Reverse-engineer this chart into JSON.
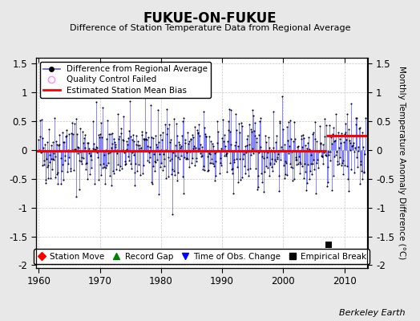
{
  "title": "FUKUE-ON-FUKUE",
  "subtitle": "Difference of Station Temperature Data from Regional Average",
  "ylabel": "Monthly Temperature Anomaly Difference (°C)",
  "xlim": [
    1959.5,
    2013.8
  ],
  "ylim": [
    -2.05,
    1.6
  ],
  "yticks": [
    -2,
    -1.5,
    -1,
    -0.5,
    0,
    0.5,
    1,
    1.5
  ],
  "xticks": [
    1960,
    1970,
    1980,
    1990,
    2000,
    2010
  ],
  "bias_value_early": -0.02,
  "bias_value_late": 0.25,
  "bias_break_year": 2007,
  "empirical_break_x": 2007.5,
  "empirical_break_y": -1.65,
  "background_color": "#e8e8e8",
  "plot_bg_color": "#ffffff",
  "line_color": "#5555ff",
  "bias_color": "#ff0000",
  "marker_color": "#000000",
  "berkeley_earth_text": "Berkeley Earth",
  "seed": 42
}
